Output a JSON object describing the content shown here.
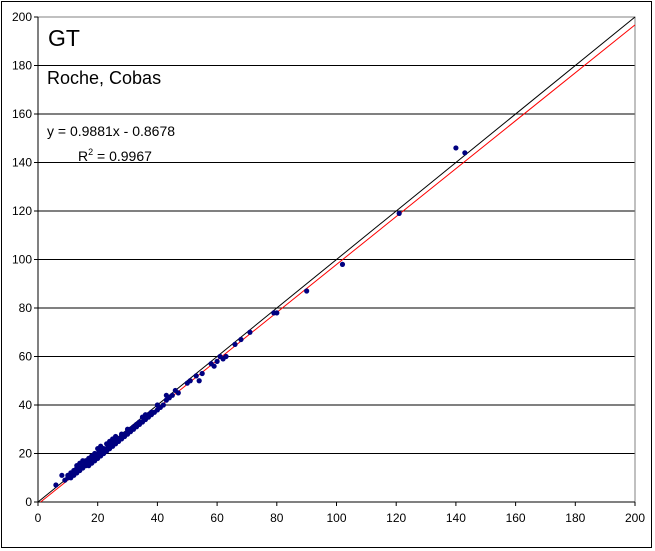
{
  "chart_data": {
    "type": "scatter",
    "title": "GT",
    "subtitle": "Roche, Cobas",
    "equation": "y = 0.9881x - 0.8678",
    "r2_label": "R",
    "r2_exp": "2",
    "r2_value": " = 0.9967",
    "xlabel": "",
    "ylabel": "",
    "xlim": [
      0,
      200
    ],
    "ylim": [
      0,
      200
    ],
    "x_ticks": [
      0,
      20,
      40,
      60,
      80,
      100,
      120,
      140,
      160,
      180,
      200
    ],
    "y_ticks": [
      0,
      20,
      40,
      60,
      80,
      100,
      120,
      140,
      160,
      180,
      200
    ],
    "grid": "horizontal",
    "identity_line": {
      "slope": 1,
      "intercept": 0,
      "color": "#000000"
    },
    "regression_line": {
      "slope": 0.9881,
      "intercept": -0.8678,
      "color": "#ff0000"
    },
    "point_color": "#000080",
    "points": [
      [
        6,
        7
      ],
      [
        8,
        11
      ],
      [
        9,
        9
      ],
      [
        10,
        10
      ],
      [
        10,
        11
      ],
      [
        11,
        10
      ],
      [
        11,
        12
      ],
      [
        12,
        11
      ],
      [
        12,
        13
      ],
      [
        13,
        12
      ],
      [
        13,
        14
      ],
      [
        13,
        15
      ],
      [
        14,
        13
      ],
      [
        14,
        14
      ],
      [
        14,
        16
      ],
      [
        15,
        14
      ],
      [
        15,
        15
      ],
      [
        15,
        17
      ],
      [
        16,
        15
      ],
      [
        16,
        16
      ],
      [
        16,
        17
      ],
      [
        17,
        15
      ],
      [
        17,
        17
      ],
      [
        17,
        18
      ],
      [
        18,
        16
      ],
      [
        18,
        18
      ],
      [
        18,
        19
      ],
      [
        19,
        17
      ],
      [
        19,
        18
      ],
      [
        19,
        20
      ],
      [
        20,
        18
      ],
      [
        20,
        19
      ],
      [
        20,
        20
      ],
      [
        20,
        22
      ],
      [
        21,
        19
      ],
      [
        21,
        21
      ],
      [
        21,
        23
      ],
      [
        22,
        20
      ],
      [
        22,
        21
      ],
      [
        22,
        22
      ],
      [
        23,
        21
      ],
      [
        23,
        22
      ],
      [
        23,
        24
      ],
      [
        24,
        22
      ],
      [
        24,
        23
      ],
      [
        24,
        25
      ],
      [
        25,
        23
      ],
      [
        25,
        24
      ],
      [
        25,
        26
      ],
      [
        26,
        24
      ],
      [
        26,
        25
      ],
      [
        26,
        27
      ],
      [
        27,
        25
      ],
      [
        27,
        26
      ],
      [
        28,
        26
      ],
      [
        28,
        27
      ],
      [
        28,
        28
      ],
      [
        29,
        27
      ],
      [
        29,
        28
      ],
      [
        30,
        28
      ],
      [
        30,
        29
      ],
      [
        30,
        30
      ],
      [
        31,
        29
      ],
      [
        31,
        30
      ],
      [
        32,
        30
      ],
      [
        32,
        31
      ],
      [
        33,
        31
      ],
      [
        33,
        32
      ],
      [
        34,
        32
      ],
      [
        34,
        33
      ],
      [
        35,
        33
      ],
      [
        35,
        35
      ],
      [
        36,
        34
      ],
      [
        36,
        36
      ],
      [
        37,
        35
      ],
      [
        37,
        36
      ],
      [
        38,
        36
      ],
      [
        38,
        37
      ],
      [
        39,
        37
      ],
      [
        40,
        38
      ],
      [
        40,
        40
      ],
      [
        41,
        39
      ],
      [
        42,
        40
      ],
      [
        43,
        42
      ],
      [
        43,
        44
      ],
      [
        44,
        43
      ],
      [
        45,
        44
      ],
      [
        46,
        46
      ],
      [
        47,
        45
      ],
      [
        50,
        49
      ],
      [
        51,
        50
      ],
      [
        53,
        52
      ],
      [
        54,
        50
      ],
      [
        55,
        53
      ],
      [
        58,
        57
      ],
      [
        59,
        56
      ],
      [
        60,
        58
      ],
      [
        61,
        60
      ],
      [
        62,
        59
      ],
      [
        63,
        60
      ],
      [
        66,
        65
      ],
      [
        68,
        67
      ],
      [
        71,
        70
      ],
      [
        79,
        78
      ],
      [
        80,
        78
      ],
      [
        90,
        87
      ],
      [
        102,
        98
      ],
      [
        121,
        119
      ],
      [
        140,
        146
      ],
      [
        143,
        144
      ]
    ]
  }
}
